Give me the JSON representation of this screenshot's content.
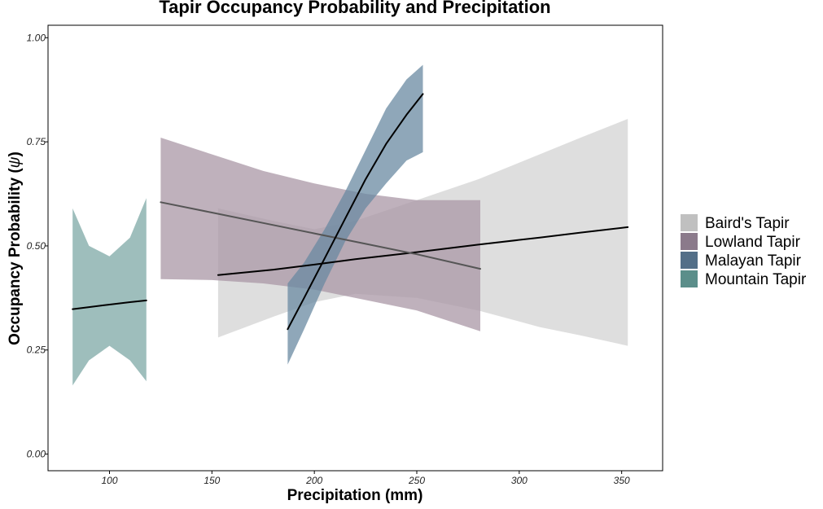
{
  "chart_data": {
    "type": "line",
    "title": "Tapir Occupancy Probability and Precipitation",
    "xlabel": "Precipitation (mm)",
    "ylabel": "Occupancy Probability (ψ)",
    "ylabel_main": "Occupancy Probability (",
    "ylabel_symbol": "ψ",
    "ylabel_close": ")",
    "xlim": [
      70,
      370
    ],
    "ylim": [
      -0.04,
      1.03
    ],
    "x_ticks": [
      100,
      150,
      200,
      250,
      300,
      350
    ],
    "y_ticks": [
      0.0,
      0.25,
      0.5,
      0.75,
      1.0
    ],
    "x_tick_labels": [
      "100",
      "150",
      "200",
      "250",
      "300",
      "350"
    ],
    "y_tick_labels": [
      "0.00",
      "0.25",
      "0.50",
      "0.75",
      "1.00"
    ],
    "grid": false,
    "legend_position": "right",
    "series": [
      {
        "name": "Baird's Tapir",
        "legend_color": "#c0c0c0",
        "band_color": "#d3d3d3",
        "line_color": "#000000",
        "x": [
          153,
          180,
          200,
          220,
          250,
          280,
          310,
          330,
          353
        ],
        "y": [
          0.43,
          0.443,
          0.455,
          0.468,
          0.485,
          0.503,
          0.52,
          0.532,
          0.545
        ],
        "lower": [
          0.28,
          0.33,
          0.365,
          0.385,
          0.375,
          0.345,
          0.305,
          0.285,
          0.26
        ],
        "upper": [
          0.59,
          0.56,
          0.54,
          0.56,
          0.61,
          0.66,
          0.72,
          0.76,
          0.805
        ]
      },
      {
        "name": "Lowland Tapir",
        "legend_color": "#8b7a8b",
        "band_color": "#a997a6",
        "line_color": "#555555",
        "x": [
          125,
          150,
          175,
          200,
          225,
          250,
          281
        ],
        "y": [
          0.605,
          0.58,
          0.555,
          0.53,
          0.505,
          0.48,
          0.445
        ],
        "lower": [
          0.42,
          0.418,
          0.41,
          0.395,
          0.37,
          0.345,
          0.295
        ],
        "upper": [
          0.76,
          0.72,
          0.68,
          0.65,
          0.625,
          0.61,
          0.61
        ]
      },
      {
        "name": "Malayan Tapir",
        "legend_color": "#536f88",
        "band_color": "#6a8aa1",
        "line_color": "#000000",
        "x": [
          187,
          195,
          205,
          215,
          225,
          235,
          245,
          253
        ],
        "y": [
          0.3,
          0.375,
          0.47,
          0.565,
          0.66,
          0.745,
          0.815,
          0.865
        ],
        "lower": [
          0.215,
          0.3,
          0.41,
          0.51,
          0.59,
          0.65,
          0.705,
          0.725
        ],
        "upper": [
          0.41,
          0.46,
          0.54,
          0.63,
          0.73,
          0.83,
          0.9,
          0.935
        ]
      },
      {
        "name": "Mountain Tapir",
        "legend_color": "#5b8e8a",
        "band_color": "#7ea8a5",
        "line_color": "#000000",
        "x": [
          82,
          90,
          100,
          110,
          118
        ],
        "y": [
          0.348,
          0.353,
          0.359,
          0.365,
          0.369
        ],
        "lower": [
          0.165,
          0.225,
          0.26,
          0.225,
          0.175
        ],
        "upper": [
          0.59,
          0.5,
          0.475,
          0.52,
          0.615
        ]
      }
    ],
    "draw_order": [
      "Baird's Tapir",
      "Lowland Tapir",
      "Malayan Tapir",
      "Mountain Tapir"
    ]
  }
}
